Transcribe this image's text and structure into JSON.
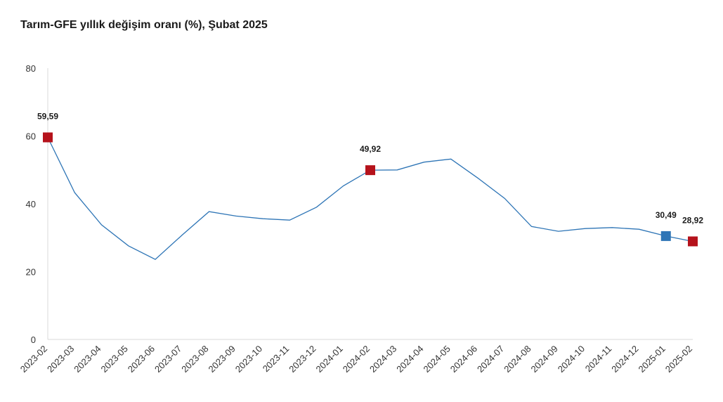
{
  "chart_data": {
    "type": "line",
    "title": "Tarım-GFE yıllık değişim oranı (%), Şubat 2025",
    "xlabel": "",
    "ylabel": "",
    "ylim": [
      0,
      80
    ],
    "yticks": [
      "0",
      "20",
      "40",
      "60",
      "80"
    ],
    "grid": false,
    "categories": [
      "2023-02",
      "2023-03",
      "2023-04",
      "2023-05",
      "2023-06",
      "2023-07",
      "2023-08",
      "2023-09",
      "2023-10",
      "2023-11",
      "2023-12",
      "2024-01",
      "2024-02",
      "2024-03",
      "2024-04",
      "2024-05",
      "2024-06",
      "2024-07",
      "2024-08",
      "2024-09",
      "2024-10",
      "2024-11",
      "2024-12",
      "2025-01",
      "2025-02"
    ],
    "series": [
      {
        "color": "#2e75b6",
        "values": [
          59.59,
          43.3,
          33.8,
          27.6,
          23.6,
          30.8,
          37.7,
          36.4,
          35.6,
          35.2,
          39.0,
          45.3,
          49.92,
          50.0,
          52.3,
          53.2,
          47.6,
          41.6,
          33.3,
          31.9,
          32.7,
          33.0,
          32.5,
          30.49,
          28.92
        ]
      }
    ],
    "markers": [
      {
        "index": 0,
        "label": "59,59",
        "color": "#b5121b"
      },
      {
        "index": 12,
        "label": "49,92",
        "color": "#b5121b"
      },
      {
        "index": 23,
        "label": "30,49",
        "color": "#2e75b6"
      },
      {
        "index": 24,
        "label": "28,92",
        "color": "#b5121b"
      }
    ]
  }
}
